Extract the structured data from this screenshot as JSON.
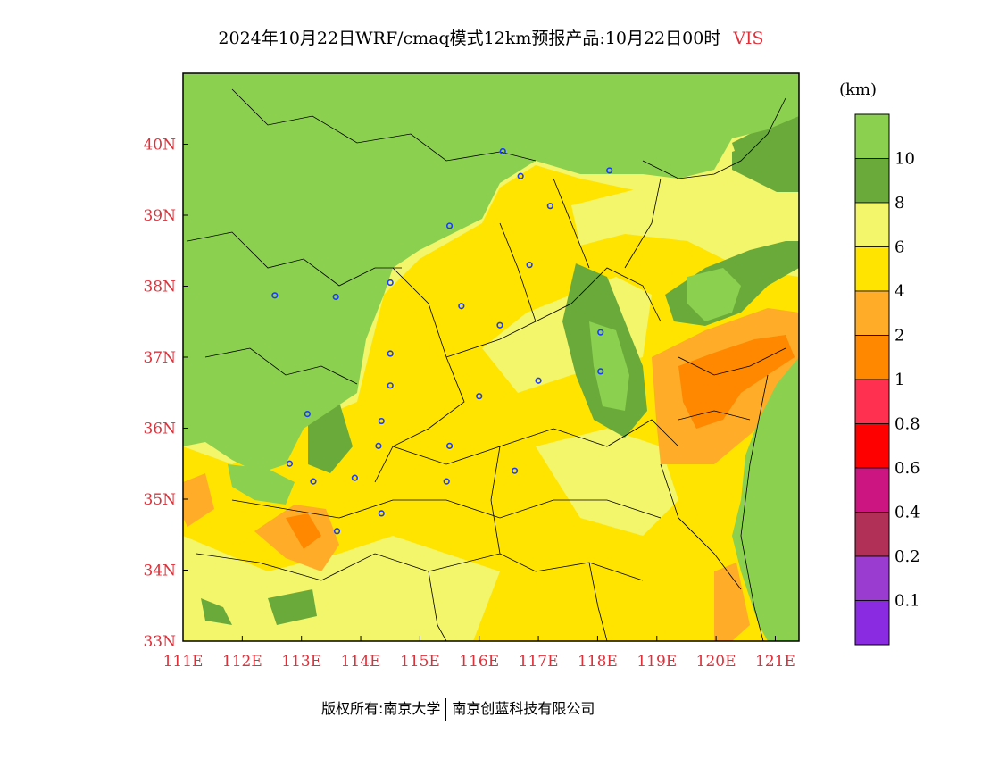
{
  "header": {
    "title": "2024年10月22日WRF/cmaq模式12km预报产品:10月22日00时",
    "variable": "VIS"
  },
  "footer": {
    "left": "版权所有:南京大学",
    "right": "南京创蓝科技有限公司"
  },
  "legend": {
    "unit": "(km)",
    "classes": [
      {
        "label": "",
        "color": "#8cd050"
      },
      {
        "label": "10",
        "color": "#6aaa3a"
      },
      {
        "label": "8",
        "color": "#f3f56a"
      },
      {
        "label": "6",
        "color": "#ffe400"
      },
      {
        "label": "4",
        "color": "#ffad28"
      },
      {
        "label": "2",
        "color": "#ff8800"
      },
      {
        "label": "1",
        "color": "#ff3050"
      },
      {
        "label": "0.8",
        "color": "#ff0000"
      },
      {
        "label": "0.6",
        "color": "#cc1580"
      },
      {
        "label": "0.4",
        "color": "#b03058"
      },
      {
        "label": "0.2",
        "color": "#9a3cd0"
      },
      {
        "label": "0.1",
        "color": "#8a2be2"
      }
    ]
  },
  "map": {
    "lon_ticks": [
      "111E",
      "112E",
      "113E",
      "114E",
      "115E",
      "116E",
      "117E",
      "118E",
      "119E",
      "120E",
      "121E"
    ],
    "lat_ticks": [
      "40N",
      "39N",
      "38N",
      "37N",
      "36N",
      "35N",
      "34N",
      "33N"
    ],
    "lon_range": [
      111,
      121.4
    ],
    "lat_range": [
      33,
      41
    ],
    "tick_color": "#e0303a",
    "cities": [
      [
        116.4,
        39.9
      ],
      [
        116.7,
        39.55
      ],
      [
        117.2,
        39.13
      ],
      [
        118.2,
        39.63
      ],
      [
        115.5,
        38.85
      ],
      [
        116.85,
        38.3
      ],
      [
        114.5,
        38.05
      ],
      [
        112.55,
        37.87
      ],
      [
        113.58,
        37.85
      ],
      [
        115.7,
        37.72
      ],
      [
        116.35,
        37.45
      ],
      [
        114.5,
        37.05
      ],
      [
        118.05,
        37.35
      ],
      [
        118.05,
        36.8
      ],
      [
        117.0,
        36.67
      ],
      [
        116.0,
        36.45
      ],
      [
        114.5,
        36.6
      ],
      [
        114.35,
        36.1
      ],
      [
        113.1,
        36.2
      ],
      [
        114.3,
        35.75
      ],
      [
        115.5,
        35.75
      ],
      [
        112.8,
        35.5
      ],
      [
        113.2,
        35.25
      ],
      [
        113.9,
        35.3
      ],
      [
        115.45,
        35.25
      ],
      [
        116.6,
        35.4
      ],
      [
        114.35,
        34.8
      ],
      [
        113.6,
        34.55
      ]
    ]
  }
}
